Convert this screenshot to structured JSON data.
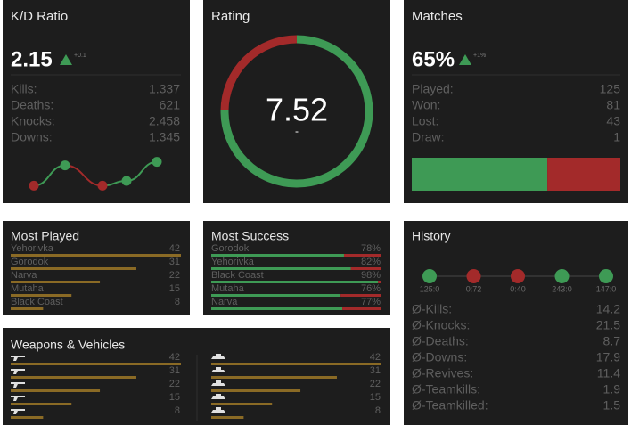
{
  "kd": {
    "title": "K/D Ratio",
    "value": 2.15,
    "delta": "+0.1",
    "stats": [
      {
        "label": "Kills:",
        "value": "1.337"
      },
      {
        "label": "Deaths:",
        "value": "621"
      },
      {
        "label": "Knocks:",
        "value": "2.458"
      },
      {
        "label": "Downs:",
        "value": "1.345"
      }
    ],
    "sparkline": {
      "values": [
        0.5,
        2.2,
        0.5,
        0.9,
        2.5
      ],
      "colors": [
        "#a32a2a",
        "#3e9a55",
        "#a32a2a",
        "#3e9a55",
        "#3e9a55"
      ],
      "ylim": [
        0,
        3
      ]
    }
  },
  "rating": {
    "title": "Rating",
    "value": 7.52,
    "sub": "-",
    "range": [
      0,
      10
    ],
    "good_color": "#3e9a55",
    "bad_color": "#a32a2a"
  },
  "matches": {
    "title": "Matches",
    "value": 65,
    "value_label": "65%",
    "delta": "+1%",
    "xlim": [
      0,
      100
    ],
    "good_color": "#3e9a55",
    "bad_color": "#a32a2a",
    "stats": [
      {
        "label": "Played:",
        "value": 125
      },
      {
        "label": "Won:",
        "value": 81
      },
      {
        "label": "Lost:",
        "value": 43
      },
      {
        "label": "Draw:",
        "value": 1
      }
    ]
  },
  "most_played": {
    "title": "Most Played",
    "xlim": [
      0,
      42
    ],
    "color": "#8a6a25",
    "items": [
      {
        "name": "Yehorivka",
        "value": 42
      },
      {
        "name": "Gorodok",
        "value": 31
      },
      {
        "name": "Narva",
        "value": 22
      },
      {
        "name": "Mutaha",
        "value": 15
      },
      {
        "name": "Black Coast",
        "value": 8
      }
    ]
  },
  "most_success": {
    "title": "Most Success",
    "xlim": [
      0,
      100
    ],
    "good_color": "#3e9a55",
    "bad_color": "#a32a2a",
    "items": [
      {
        "name": "Gorodok",
        "value": 78,
        "label": "78%"
      },
      {
        "name": "Yehorivka",
        "value": 82,
        "label": "82%"
      },
      {
        "name": "Black Coast",
        "value": 98,
        "label": "98%"
      },
      {
        "name": "Mutaha",
        "value": 76,
        "label": "76%"
      },
      {
        "name": "Narva",
        "value": 77,
        "label": "77%"
      }
    ]
  },
  "history": {
    "title": "History",
    "matches": [
      {
        "score": "125:0",
        "color": "#3e9a55"
      },
      {
        "score": "0:72",
        "color": "#a32a2a"
      },
      {
        "score": "0:40",
        "color": "#a32a2a"
      },
      {
        "score": "243:0",
        "color": "#3e9a55"
      },
      {
        "score": "147:0",
        "color": "#3e9a55"
      }
    ],
    "stats": [
      {
        "label": "Ø-Kills:",
        "value": 14.2
      },
      {
        "label": "Ø-Knocks:",
        "value": 21.5
      },
      {
        "label": "Ø-Deaths:",
        "value": 8.7
      },
      {
        "label": "Ø-Downs:",
        "value": 17.9
      },
      {
        "label": "Ø-Revives:",
        "value": 11.4
      },
      {
        "label": "Ø-Teamkills:",
        "value": 1.9
      },
      {
        "label": "Ø-Teamkilled:",
        "value": 1.5
      }
    ]
  },
  "weapons": {
    "title": "Weapons & Vehicles",
    "xlim": [
      0,
      42
    ],
    "color": "#8a6a25",
    "weapons": [
      42,
      31,
      22,
      15,
      8
    ],
    "vehicles": [
      42,
      31,
      22,
      15,
      8
    ]
  }
}
